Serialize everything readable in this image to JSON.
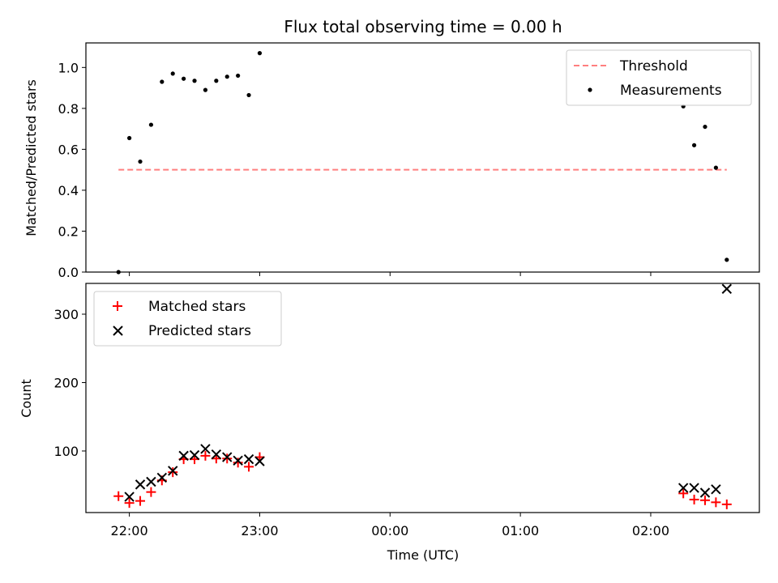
{
  "chart_data": [
    {
      "type": "scatter",
      "title": "Flux total observing time = 0.00 h",
      "xlabel": "",
      "ylabel": "Matched/Predicted stars",
      "ylim": [
        0,
        1.12
      ],
      "y_ticks": [
        0.0,
        0.2,
        0.4,
        0.6,
        0.8,
        1.0
      ],
      "y_tick_labels": [
        "0.0",
        "0.2",
        "0.4",
        "0.6",
        "0.8",
        "1.0"
      ],
      "legend_position": "top-right",
      "grid": false,
      "threshold": {
        "name": "Threshold",
        "y": 0.5,
        "x_range": [
          "21:55",
          "02:35"
        ],
        "color": "#ff7f7f",
        "style": "dashed"
      },
      "series": [
        {
          "name": "Measurements",
          "marker": "dot",
          "color": "#000000",
          "points": [
            [
              "21:55",
              0.0
            ],
            [
              "22:00",
              0.655
            ],
            [
              "22:05",
              0.54
            ],
            [
              "22:10",
              0.72
            ],
            [
              "22:15",
              0.93
            ],
            [
              "22:20",
              0.97
            ],
            [
              "22:25",
              0.945
            ],
            [
              "22:30",
              0.935
            ],
            [
              "22:35",
              0.89
            ],
            [
              "22:40",
              0.935
            ],
            [
              "22:45",
              0.955
            ],
            [
              "22:50",
              0.96
            ],
            [
              "22:55",
              0.865
            ],
            [
              "23:00",
              1.07
            ],
            [
              "02:15",
              0.81
            ],
            [
              "02:20",
              0.62
            ],
            [
              "02:25",
              0.71
            ],
            [
              "02:30",
              0.51
            ],
            [
              "02:35",
              0.06
            ]
          ]
        }
      ]
    },
    {
      "type": "scatter",
      "title": "",
      "xlabel": "Time (UTC)",
      "ylabel": "Count",
      "ylim": [
        10,
        345
      ],
      "y_ticks": [
        100,
        200,
        300
      ],
      "y_tick_labels": [
        "100",
        "200",
        "300"
      ],
      "x_ticks": [
        "22:00",
        "23:00",
        "00:00",
        "01:00",
        "02:00"
      ],
      "x_tick_labels": [
        "22:00",
        "23:00",
        "00:00",
        "01:00",
        "02:00"
      ],
      "xlim": [
        "21:40",
        "02:50"
      ],
      "legend_position": "top-left",
      "grid": false,
      "series": [
        {
          "name": "Matched stars",
          "marker": "plus",
          "color": "#ff0000",
          "points": [
            [
              "21:55",
              34
            ],
            [
              "22:00",
              24
            ],
            [
              "22:05",
              27
            ],
            [
              "22:10",
              40
            ],
            [
              "22:15",
              57
            ],
            [
              "22:20",
              69
            ],
            [
              "22:25",
              88
            ],
            [
              "22:30",
              88
            ],
            [
              "22:35",
              93
            ],
            [
              "22:40",
              89
            ],
            [
              "22:45",
              89
            ],
            [
              "22:50",
              83
            ],
            [
              "22:55",
              77
            ],
            [
              "23:00",
              91
            ],
            [
              "02:15",
              38
            ],
            [
              "02:20",
              29
            ],
            [
              "02:25",
              28
            ],
            [
              "02:30",
              25
            ],
            [
              "02:35",
              22
            ]
          ]
        },
        {
          "name": "Predicted stars",
          "marker": "x",
          "color": "#000000",
          "points": [
            [
              "22:00",
              33
            ],
            [
              "22:05",
              51
            ],
            [
              "22:10",
              55
            ],
            [
              "22:15",
              61
            ],
            [
              "22:20",
              71
            ],
            [
              "22:25",
              93
            ],
            [
              "22:30",
              94
            ],
            [
              "22:35",
              103
            ],
            [
              "22:40",
              95
            ],
            [
              "22:45",
              91
            ],
            [
              "22:50",
              86
            ],
            [
              "22:55",
              88
            ],
            [
              "23:00",
              85
            ],
            [
              "02:15",
              46
            ],
            [
              "02:20",
              46
            ],
            [
              "02:25",
              39
            ],
            [
              "02:30",
              44
            ],
            [
              "02:35",
              337
            ]
          ]
        }
      ]
    }
  ]
}
